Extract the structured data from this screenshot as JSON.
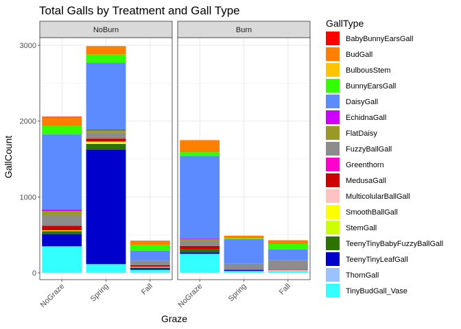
{
  "chart_data": {
    "type": "bar",
    "stacked": true,
    "title": "Total Galls by Treatment and Gall Type",
    "xlabel": "Graze",
    "ylabel": "GallCount",
    "ylim": [
      -90,
      3100
    ],
    "yticks": [
      0,
      1000,
      2000,
      3000
    ],
    "categories": [
      "NoGraze",
      "Spring",
      "Fall"
    ],
    "facets": [
      "NoBurn",
      "Burn"
    ],
    "grid": true,
    "legend_position": "right",
    "legend_title": "GallType",
    "series": [
      {
        "name": "TinyBudGall_Vase",
        "color": "#33FFFF",
        "values": {
          "NoBurn": [
            350,
            115,
            40
          ],
          "Burn": [
            250,
            25,
            25
          ]
        }
      },
      {
        "name": "ThornGall",
        "color": "#99C2FF",
        "values": {
          "NoBurn": [
            0,
            0,
            0
          ],
          "Burn": [
            0,
            0,
            0
          ]
        }
      },
      {
        "name": "TeenyTinyLeafGall",
        "color": "#0000CC",
        "values": {
          "NoBurn": [
            160,
            1510,
            20
          ],
          "Burn": [
            20,
            15,
            0
          ]
        }
      },
      {
        "name": "TeenyTinyBabyFuzzyBallGall",
        "color": "#2D7300",
        "values": {
          "NoBurn": [
            40,
            75,
            10
          ],
          "Burn": [
            40,
            0,
            0
          ]
        }
      },
      {
        "name": "StemGall",
        "color": "#CCFF00",
        "values": {
          "NoBurn": [
            0,
            0,
            0
          ],
          "Burn": [
            0,
            0,
            0
          ]
        }
      },
      {
        "name": "SmoothBallGall",
        "color": "#FFFF00",
        "values": {
          "NoBurn": [
            10,
            30,
            0
          ],
          "Burn": [
            0,
            0,
            0
          ]
        }
      },
      {
        "name": "MulticolularBallGall",
        "color": "#FFC2C2",
        "values": {
          "NoBurn": [
            0,
            0,
            10
          ],
          "Burn": [
            0,
            0,
            10
          ]
        }
      },
      {
        "name": "MedusaGall",
        "color": "#CC0000",
        "values": {
          "NoBurn": [
            60,
            40,
            20
          ],
          "Burn": [
            45,
            0,
            5
          ]
        }
      },
      {
        "name": "Greenthorn",
        "color": "#FF00CC",
        "values": {
          "NoBurn": [
            0,
            0,
            0
          ],
          "Burn": [
            0,
            0,
            0
          ]
        }
      },
      {
        "name": "FuzzyBallGall",
        "color": "#8C8C8C",
        "values": {
          "NoBurn": [
            135,
            80,
            60
          ],
          "Burn": [
            65,
            80,
            130
          ]
        }
      },
      {
        "name": "FlatDaisy",
        "color": "#999925",
        "values": {
          "NoBurn": [
            60,
            30,
            0
          ],
          "Burn": [
            25,
            0,
            0
          ]
        }
      },
      {
        "name": "EchidnaGall",
        "color": "#CC00FF",
        "values": {
          "NoBurn": [
            20,
            10,
            0
          ],
          "Burn": [
            10,
            0,
            0
          ]
        }
      },
      {
        "name": "DaisyGall",
        "color": "#5C8AFF",
        "values": {
          "NoBurn": [
            990,
            880,
            130
          ],
          "Burn": [
            1085,
            325,
            140
          ]
        }
      },
      {
        "name": "BunnyEarsGall",
        "color": "#33FF00",
        "values": {
          "NoBurn": [
            110,
            110,
            75
          ],
          "Burn": [
            50,
            10,
            70
          ]
        }
      },
      {
        "name": "BulbousStem",
        "color": "#FFC300",
        "values": {
          "NoBurn": [
            0,
            0,
            0
          ],
          "Burn": [
            0,
            0,
            0
          ]
        }
      },
      {
        "name": "BudGall",
        "color": "#FF8000",
        "values": {
          "NoBurn": [
            120,
            110,
            60
          ],
          "Burn": [
            160,
            35,
            50
          ]
        }
      },
      {
        "name": "BabyBunnyEarsGall",
        "color": "#FF0000",
        "values": {
          "NoBurn": [
            5,
            0,
            0
          ],
          "Burn": [
            0,
            0,
            0
          ]
        }
      }
    ],
    "legend_order": [
      "BabyBunnyEarsGall",
      "BudGall",
      "BulbousStem",
      "BunnyEarsGall",
      "DaisyGall",
      "EchidnaGall",
      "FlatDaisy",
      "FuzzyBallGall",
      "Greenthorn",
      "MedusaGall",
      "MulticolularBallGall",
      "SmoothBallGall",
      "StemGall",
      "TeenyTinyBabyFuzzyBallGall",
      "TeenyTinyLeafGall",
      "ThornGall",
      "TinyBudGall_Vase"
    ]
  }
}
